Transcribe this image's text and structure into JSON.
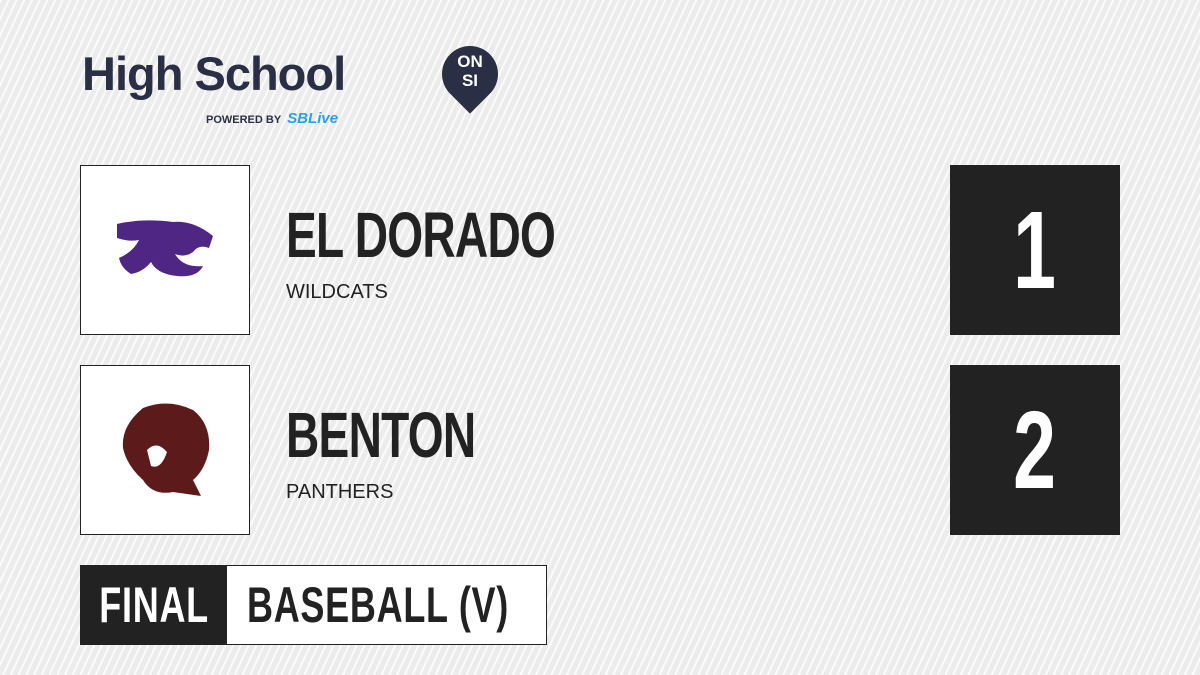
{
  "brand": {
    "title": "High School",
    "badge_line1": "ON",
    "badge_line2": "SI",
    "powered_by": "POWERED BY",
    "partner": "SBLive"
  },
  "teams": [
    {
      "name": "EL DORADO",
      "mascot": "WILDCATS",
      "score": "1",
      "logo_color": "#4f2683",
      "icon": "wildcat-logo-icon"
    },
    {
      "name": "BENTON",
      "mascot": "PANTHERS",
      "score": "2",
      "logo_color": "#5c1a1a",
      "icon": "panther-logo-icon"
    }
  ],
  "game": {
    "status": "FINAL",
    "sport": "BASEBALL (V)"
  }
}
